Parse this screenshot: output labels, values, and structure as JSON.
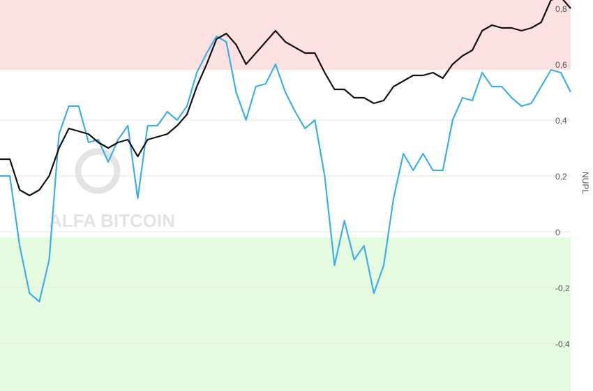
{
  "chart_data": {
    "type": "line",
    "y_label": "NUPL",
    "watermark": "ALFA BITCOIN",
    "ylim": [
      -0.57,
      0.83
    ],
    "yticks": [
      {
        "value": -0.4,
        "label": "-0,4"
      },
      {
        "value": -0.2,
        "label": "-0,2"
      },
      0,
      {
        "value": 0.2,
        "label": "0,2"
      },
      {
        "value": 0.4,
        "label": "0,4"
      },
      {
        "value": 0.6,
        "label": "0,6"
      },
      {
        "value": 0.8,
        "label": "0,8"
      }
    ],
    "grid": true,
    "bands": [
      {
        "from": 0.58,
        "to": 0.83,
        "color": "#fde0e0"
      },
      {
        "from": -0.57,
        "to": -0.02,
        "color": "#e4fbe0"
      }
    ],
    "series": [
      {
        "color": "#3daee9",
        "values": [
          0.2,
          0.2,
          -0.05,
          -0.22,
          -0.25,
          -0.1,
          0.35,
          0.45,
          0.45,
          0.32,
          0.33,
          0.25,
          0.33,
          0.38,
          0.12,
          0.38,
          0.38,
          0.43,
          0.4,
          0.45,
          0.57,
          0.64,
          0.7,
          0.68,
          0.5,
          0.4,
          0.52,
          0.53,
          0.6,
          0.5,
          0.43,
          0.37,
          0.4,
          0.2,
          -0.12,
          0.04,
          -0.1,
          -0.05,
          -0.22,
          -0.12,
          0.12,
          0.28,
          0.22,
          0.28,
          0.22,
          0.22,
          0.4,
          0.48,
          0.47,
          0.57,
          0.52,
          0.52,
          0.48,
          0.45,
          0.46,
          0.52,
          0.58,
          0.57,
          0.5
        ]
      },
      {
        "color": "#111111",
        "values": [
          0.26,
          0.26,
          0.15,
          0.13,
          0.15,
          0.2,
          0.3,
          0.37,
          0.36,
          0.35,
          0.32,
          0.3,
          0.32,
          0.33,
          0.27,
          0.33,
          0.34,
          0.35,
          0.38,
          0.42,
          0.52,
          0.6,
          0.69,
          0.71,
          0.67,
          0.6,
          0.64,
          0.68,
          0.72,
          0.68,
          0.66,
          0.64,
          0.64,
          0.57,
          0.51,
          0.51,
          0.48,
          0.48,
          0.46,
          0.47,
          0.52,
          0.54,
          0.56,
          0.56,
          0.57,
          0.55,
          0.6,
          0.63,
          0.65,
          0.72,
          0.74,
          0.73,
          0.73,
          0.72,
          0.73,
          0.75,
          0.83,
          0.84,
          0.8
        ]
      }
    ]
  }
}
